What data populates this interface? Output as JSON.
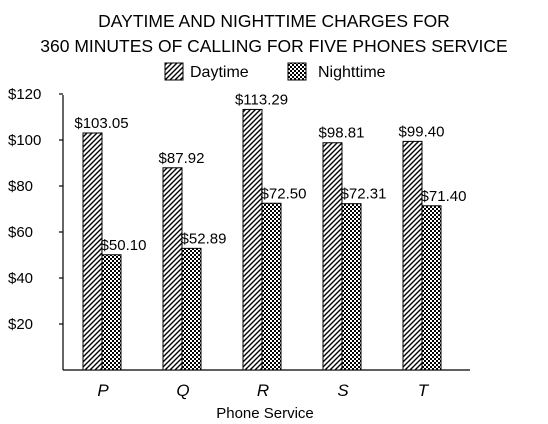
{
  "chart_data": {
    "type": "bar",
    "title": "DAYTIME AND NIGHTTIME CHARGES FOR",
    "subtitle": "360 MINUTES OF CALLING FOR FIVE PHONES SERVICE",
    "xlabel": "Phone Service",
    "ylabel": "",
    "categories": [
      "P",
      "Q",
      "R",
      "S",
      "T"
    ],
    "series": [
      {
        "name": "Daytime",
        "values": [
          103.05,
          87.92,
          113.29,
          98.81,
          99.4
        ],
        "labels": [
          "$103.05",
          "$87.92",
          "$113.29",
          "$98.81",
          "$99.40"
        ],
        "pattern": "diagonal-hatch"
      },
      {
        "name": "Nighttime",
        "values": [
          50.1,
          52.89,
          72.5,
          72.31,
          71.4
        ],
        "labels": [
          "$50.10",
          "$52.89",
          "$72.50",
          "$72.31",
          "$71.40"
        ],
        "pattern": "checker"
      }
    ],
    "ylim": [
      0,
      125
    ],
    "yticks": [
      20,
      40,
      60,
      80,
      100,
      120
    ],
    "ytick_labels": [
      "$20",
      "$40",
      "$60",
      "$80",
      "$100",
      "$120"
    ],
    "grid": false,
    "legend_position": "top"
  }
}
